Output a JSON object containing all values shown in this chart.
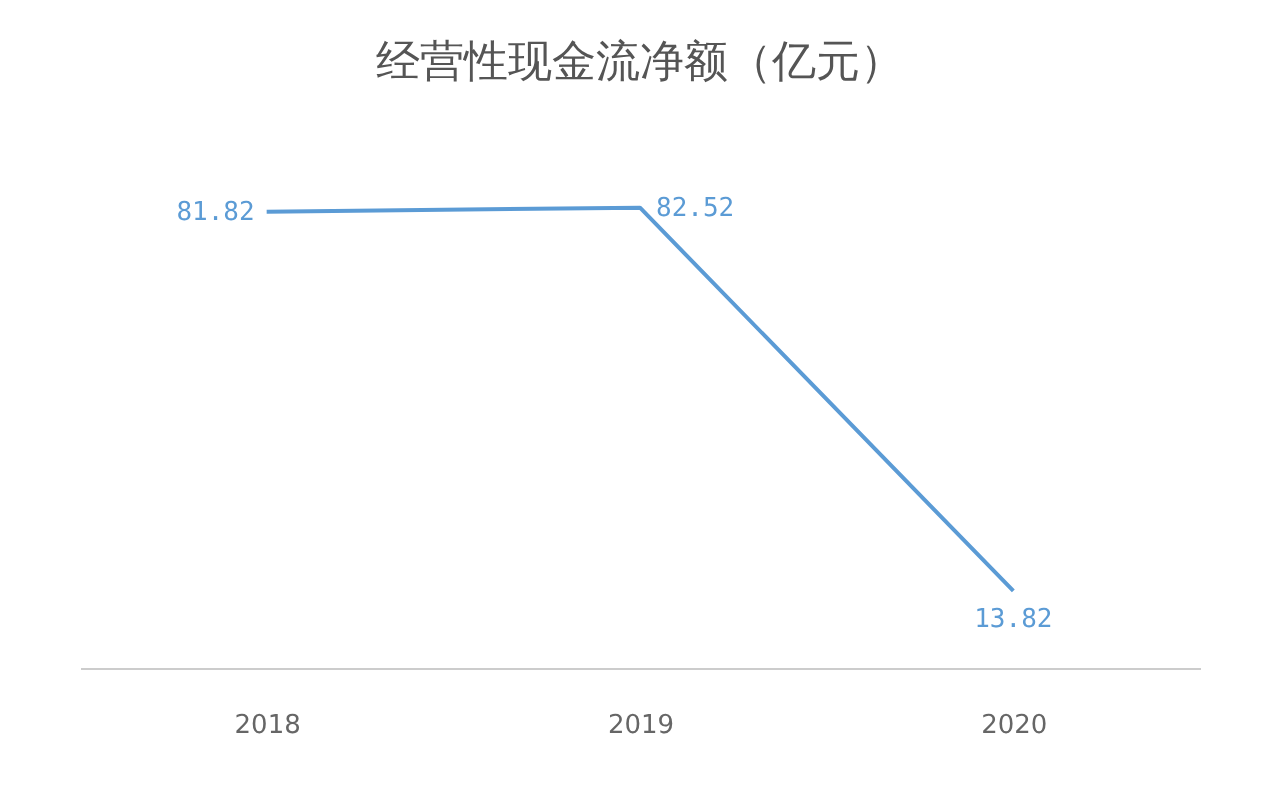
{
  "chart_data": {
    "type": "line",
    "title": "经营性现金流净额（亿元）",
    "categories": [
      "2018",
      "2019",
      "2020"
    ],
    "series": [
      {
        "color": "#5b9bd5",
        "values": [
          81.82,
          82.52,
          13.82
        ]
      }
    ],
    "data_labels": true,
    "grid": false,
    "legend": false,
    "marker": "none",
    "tick_labels": "x"
  }
}
